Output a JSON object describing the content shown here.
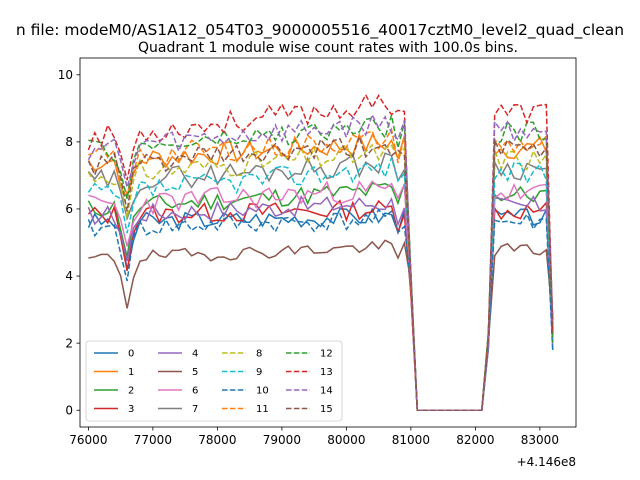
{
  "chart_data": {
    "type": "line",
    "suptitle": "n file: modeM0/AS1A12_054T03_9000005516_40017cztM0_level2_quad_clean",
    "title": "Quadrant 1 module wise count rates with 100.0s bins.",
    "xlabel": "",
    "ylabel": "",
    "offset_label": "+4.146e8",
    "xlim": [
      75870,
      83560
    ],
    "ylim": [
      -0.5,
      10.5
    ],
    "xticks": [
      76000,
      77000,
      78000,
      79000,
      80000,
      81000,
      82000,
      83000
    ],
    "yticks": [
      0,
      2,
      4,
      6,
      8,
      10
    ],
    "legend_location": "lower-left",
    "legend_columns": 4,
    "series": [
      {
        "name": "0",
        "color": "#1f77b4",
        "dash": "solid",
        "base": 5.6,
        "trend": 0.2,
        "noise": 0.28,
        "seed": 3
      },
      {
        "name": "1",
        "color": "#ff7f0e",
        "dash": "solid",
        "base": 7.4,
        "trend": 0.6,
        "noise": 0.35,
        "seed": 7
      },
      {
        "name": "2",
        "color": "#2ca02c",
        "dash": "solid",
        "base": 6.0,
        "trend": 0.6,
        "noise": 0.3,
        "seed": 11
      },
      {
        "name": "3",
        "color": "#d62728",
        "dash": "solid",
        "base": 5.8,
        "trend": 0.2,
        "noise": 0.3,
        "seed": 13
      },
      {
        "name": "4",
        "color": "#9467bd",
        "dash": "solid",
        "base": 5.8,
        "trend": 0.4,
        "noise": 0.3,
        "seed": 17
      },
      {
        "name": "5",
        "color": "#8c564b",
        "dash": "solid",
        "base": 4.5,
        "trend": 0.4,
        "noise": 0.2,
        "seed": 19
      },
      {
        "name": "6",
        "color": "#e377c2",
        "dash": "solid",
        "base": 6.1,
        "trend": 0.5,
        "noise": 0.35,
        "seed": 23
      },
      {
        "name": "7",
        "color": "#7f7f7f",
        "dash": "solid",
        "base": 6.8,
        "trend": 0.6,
        "noise": 0.35,
        "seed": 29
      },
      {
        "name": "8",
        "color": "#bcbd22",
        "dash": "dashed",
        "base": 7.0,
        "trend": 0.7,
        "noise": 0.35,
        "seed": 31
      },
      {
        "name": "9",
        "color": "#17becf",
        "dash": "dashed",
        "base": 6.4,
        "trend": 0.9,
        "noise": 0.35,
        "seed": 37
      },
      {
        "name": "10",
        "color": "#1f77b4",
        "dash": "dashed",
        "base": 5.4,
        "trend": 0.3,
        "noise": 0.3,
        "seed": 41
      },
      {
        "name": "11",
        "color": "#ff7f0e",
        "dash": "dashed",
        "base": 7.5,
        "trend": 0.6,
        "noise": 0.35,
        "seed": 43
      },
      {
        "name": "12",
        "color": "#2ca02c",
        "dash": "dashed",
        "base": 7.7,
        "trend": 0.8,
        "noise": 0.35,
        "seed": 47
      },
      {
        "name": "13",
        "color": "#d62728",
        "dash": "dashed",
        "base": 8.1,
        "trend": 1.1,
        "noise": 0.35,
        "seed": 53
      },
      {
        "name": "14",
        "color": "#9467bd",
        "dash": "dashed",
        "base": 7.8,
        "trend": 0.8,
        "noise": 0.35,
        "seed": 59
      },
      {
        "name": "15",
        "color": "#8c564b",
        "dash": "dashed",
        "base": 7.3,
        "trend": 0.6,
        "noise": 0.35,
        "seed": 61
      }
    ]
  }
}
